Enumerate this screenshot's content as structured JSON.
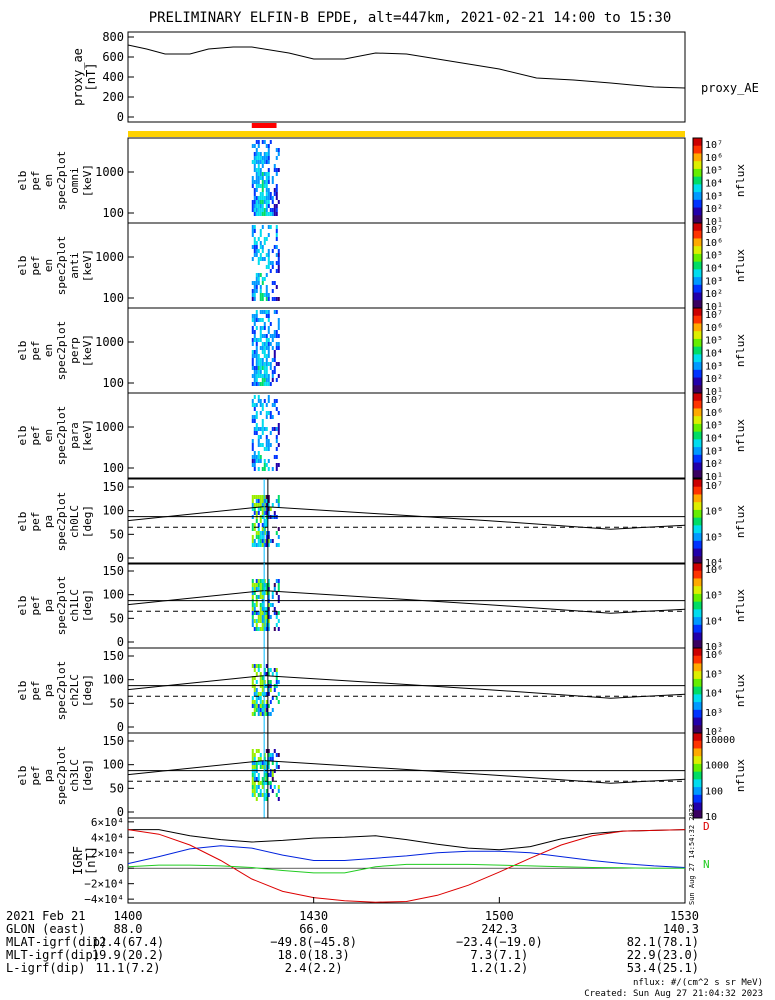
{
  "title": "PRELIMINARY ELFIN-B EPDE, alt=447km, 2021-02-21 14:00 to 15:30",
  "chart_data": [
    {
      "type": "line",
      "panel": "proxy_ae",
      "ylabel_lines": [
        "proxy_ae",
        "[nT]"
      ],
      "legend": "proxy_AE",
      "yticks": [
        "800",
        "600",
        "400",
        "200",
        "0"
      ],
      "ylim": [
        -50,
        850
      ],
      "x": [
        0,
        3,
        6,
        10,
        13,
        17,
        20,
        26,
        30,
        35,
        40,
        45,
        52,
        60,
        66,
        72,
        78,
        85,
        90
      ],
      "series": [
        {
          "values": [
            720,
            680,
            630,
            630,
            680,
            700,
            700,
            640,
            580,
            580,
            640,
            630,
            560,
            480,
            390,
            370,
            340,
            300,
            290
          ]
        }
      ],
      "xlim": [
        0,
        90
      ]
    },
    {
      "type": "heatmap",
      "panel": "en omni",
      "ylabel_lines": [
        "elb",
        "pef",
        "en",
        "spec2plot",
        "omni",
        "[keV]"
      ],
      "yticks": [
        "1000",
        "100"
      ],
      "zlabel": "nflux",
      "zticks": [
        "10⁷",
        "10⁶",
        "10⁵",
        "10⁴",
        "10³",
        "10²",
        "10¹"
      ]
    },
    {
      "type": "heatmap",
      "panel": "en anti",
      "ylabel_lines": [
        "elb",
        "pef",
        "en",
        "spec2plot",
        "anti",
        "[keV]"
      ],
      "yticks": [
        "1000",
        "100"
      ],
      "zlabel": "nflux",
      "zticks": [
        "10⁷",
        "10⁶",
        "10⁵",
        "10⁴",
        "10³",
        "10²",
        "10¹"
      ]
    },
    {
      "type": "heatmap",
      "panel": "en perp",
      "ylabel_lines": [
        "elb",
        "pef",
        "en",
        "spec2plot",
        "perp",
        "[keV]"
      ],
      "yticks": [
        "1000",
        "100"
      ],
      "zlabel": "nflux",
      "zticks": [
        "10⁷",
        "10⁶",
        "10⁵",
        "10⁴",
        "10³",
        "10²",
        "10¹"
      ]
    },
    {
      "type": "heatmap",
      "panel": "en para",
      "ylabel_lines": [
        "elb",
        "pef",
        "en",
        "spec2plot",
        "para",
        "[keV]"
      ],
      "yticks": [
        "1000",
        "100"
      ],
      "zlabel": "nflux",
      "zticks": [
        "10⁷",
        "10⁶",
        "10⁵",
        "10⁴",
        "10³",
        "10²",
        "10¹"
      ]
    },
    {
      "type": "heatmap",
      "panel": "pa ch0LC",
      "ylabel_lines": [
        "elb",
        "pef",
        "pa",
        "spec2plot",
        "ch0LC",
        "[deg]"
      ],
      "yticks": [
        "150",
        "100",
        "50",
        "0"
      ],
      "zlabel": "nflux",
      "zticks": [
        "10⁷",
        "10⁶",
        "10⁵",
        "10⁴"
      ]
    },
    {
      "type": "heatmap",
      "panel": "pa ch1LC",
      "ylabel_lines": [
        "elb",
        "pef",
        "pa",
        "spec2plot",
        "ch1LC",
        "[deg]"
      ],
      "yticks": [
        "150",
        "100",
        "50",
        "0"
      ],
      "zlabel": "nflux",
      "zticks": [
        "10⁶",
        "10⁵",
        "10⁴",
        "10³"
      ]
    },
    {
      "type": "heatmap",
      "panel": "pa ch2LC",
      "ylabel_lines": [
        "elb",
        "pef",
        "pa",
        "spec2plot",
        "ch2LC",
        "[deg]"
      ],
      "yticks": [
        "150",
        "100",
        "50",
        "0"
      ],
      "zlabel": "nflux",
      "zticks": [
        "10⁶",
        "10⁵",
        "10⁴",
        "10³",
        "10²"
      ]
    },
    {
      "type": "heatmap",
      "panel": "pa ch3LC",
      "ylabel_lines": [
        "elb",
        "pef",
        "pa",
        "spec2plot",
        "ch3LC",
        "[deg]"
      ],
      "yticks": [
        "150",
        "100",
        "50",
        "0"
      ],
      "zlabel": "nflux",
      "zticks": [
        "10000",
        "1000",
        "100",
        "10"
      ]
    },
    {
      "type": "line",
      "panel": "igrf",
      "ylabel_lines": [
        "IGRF",
        "[nT]"
      ],
      "yticks": [
        "6×10⁴",
        "4×10⁴",
        "2×10⁴",
        "0",
        "−2×10⁴",
        "−4×10⁴"
      ],
      "ylim": [
        -45000,
        65000
      ],
      "legend": [
        "D",
        "N"
      ],
      "x": [
        0,
        5,
        10,
        15,
        20,
        25,
        30,
        35,
        40,
        45,
        50,
        55,
        60,
        65,
        70,
        75,
        80,
        85,
        90
      ],
      "series": [
        {
          "values": [
            50000,
            50000,
            42000,
            37000,
            34000,
            36000,
            39000,
            40000,
            42000,
            37000,
            31000,
            26000,
            24000,
            28000,
            38000,
            45000,
            48000,
            49000,
            50000
          ]
        },
        {
          "values": [
            6000,
            15000,
            25000,
            29000,
            26000,
            17000,
            10000,
            10000,
            13000,
            16000,
            20000,
            22000,
            22000,
            20000,
            15000,
            10000,
            6000,
            3000,
            1000
          ]
        },
        {
          "values": [
            50000,
            44000,
            30000,
            10000,
            -14000,
            -30000,
            -38000,
            -42000,
            -44000,
            -43000,
            -35000,
            -22000,
            -5000,
            13000,
            30000,
            42000,
            48000,
            49000,
            50000
          ]
        },
        {
          "values": [
            2000,
            4000,
            4000,
            3000,
            1000,
            -3000,
            -6000,
            -6000,
            2000,
            5000,
            5000,
            5000,
            4000,
            3000,
            2000,
            1000,
            500,
            0,
            0
          ]
        }
      ]
    }
  ],
  "xlim": [
    0,
    90
  ],
  "timeline": {
    "columns": [
      {
        "label": "1400",
        "pos": 0
      },
      {
        "label": "1430",
        "pos": 30
      },
      {
        "label": "1500",
        "pos": 60
      },
      {
        "label": "1530",
        "pos": 90
      }
    ],
    "rows": [
      {
        "label": "2021 Feb 21",
        "values": [
          "1400",
          "1430",
          "1500",
          "1530"
        ]
      },
      {
        "label": "GLON (east)",
        "values": [
          "88.0",
          "66.0",
          "242.3",
          "140.3"
        ]
      },
      {
        "label": "MLAT-igrf(dip)",
        "values": [
          "12.4(67.4)",
          "−49.8(−45.8)",
          "−23.4(−19.0)",
          "82.1(78.1)"
        ]
      },
      {
        "label": "MLT-igrf(dip)",
        "values": [
          "19.9(20.2)",
          "18.0(18.3)",
          "7.3(7.1)",
          "22.9(23.0)"
        ]
      },
      {
        "label": "L-igrf(dip)",
        "values": [
          "11.1(7.2)",
          "2.4(2.2)",
          "1.2(1.2)",
          "53.4(25.1)"
        ]
      }
    ]
  },
  "footer": {
    "units": "nflux: #/(cm^2 s sr MeV)",
    "created": "Created: Sun Aug 27 21:04:32 2023",
    "stamp": "Sun Aug 27 14:54:32 2023"
  },
  "colors": {
    "yellow_bar": "#ffd200",
    "red_bar": "#ff0000",
    "line_black": "#000000",
    "line_blue": "#0022dd",
    "line_red": "#dd0000",
    "line_green": "#22cc22",
    "marker_cyan": "#00bbff"
  }
}
